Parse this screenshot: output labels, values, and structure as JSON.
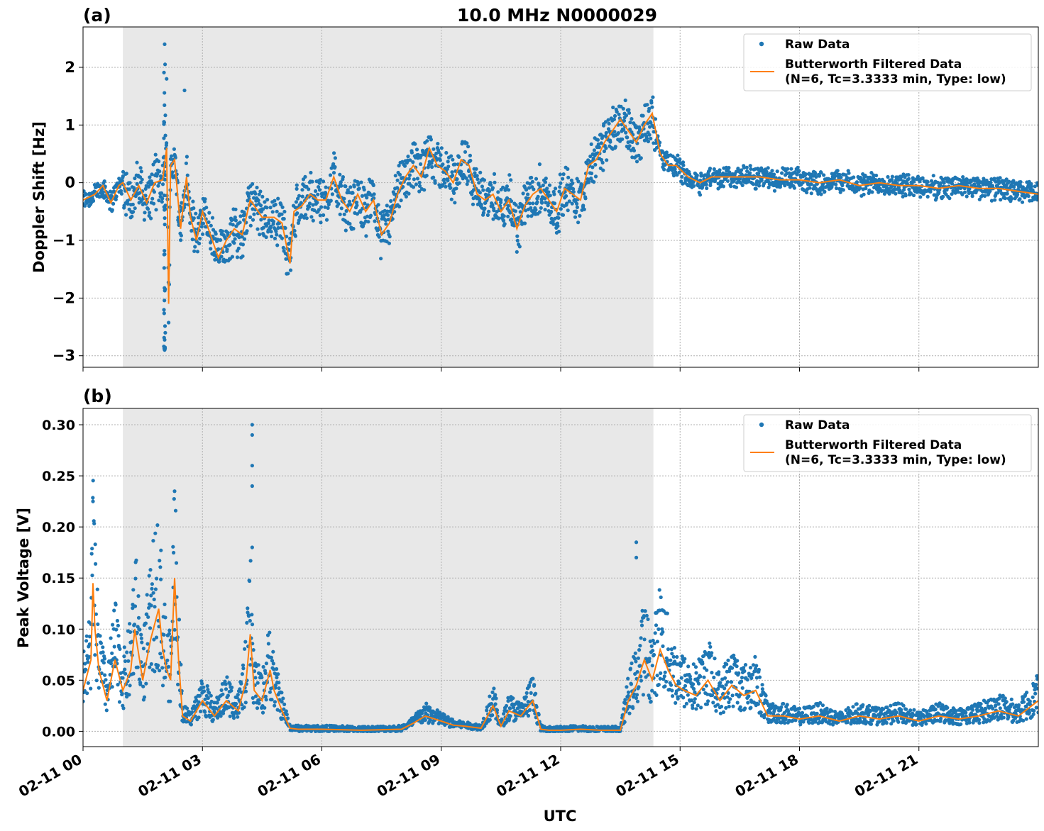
{
  "figure": {
    "title": "10.0 MHz N0000029",
    "xlabel": "UTC",
    "x_tick_labels": [
      "02-11 00",
      "02-11 03",
      "02-11 06",
      "02-11 09",
      "02-11 12",
      "02-11 15",
      "02-11 18",
      "02-11 21"
    ],
    "colors": {
      "raw": "#1f77b4",
      "filtered": "#ff7f0e",
      "night_shade": "#e8e8e8",
      "grid": "#b0b0b0"
    }
  },
  "chart_data": [
    {
      "type": "scatter",
      "panel_label": "(a)",
      "title": "10.0 MHz N0000029",
      "xlabel": "",
      "ylabel": "Doppler Shift [Hz]",
      "x_range_hours": [
        0,
        24
      ],
      "ylim": [
        -3.2,
        2.7
      ],
      "y_ticks": [
        2,
        1,
        0,
        -1,
        -2,
        -3
      ],
      "y_tick_labels": [
        "2",
        "1",
        "0",
        "−1",
        "−2",
        "−3"
      ],
      "shaded_interval_hours": [
        1.0,
        14.33
      ],
      "grid": true,
      "legend_placement": "top-right",
      "legend": [
        "Raw Data",
        "Butterworth Filtered Data",
        "(N=6, Tc=3.3333 min, Type: low)"
      ],
      "series": [
        {
          "name": "Butterworth Filtered Data",
          "x": [
            0,
            0.3,
            0.5,
            0.7,
            0.9,
            1.0,
            1.2,
            1.4,
            1.6,
            1.8,
            2.0,
            2.1,
            2.15,
            2.2,
            2.3,
            2.45,
            2.6,
            2.7,
            2.85,
            3.0,
            3.2,
            3.4,
            3.6,
            3.8,
            4.0,
            4.2,
            4.5,
            4.8,
            5.0,
            5.2,
            5.3,
            5.5,
            5.7,
            5.9,
            6.1,
            6.3,
            6.5,
            6.7,
            6.9,
            7.1,
            7.3,
            7.5,
            7.7,
            7.9,
            8.1,
            8.3,
            8.5,
            8.7,
            8.9,
            9.1,
            9.3,
            9.5,
            9.7,
            9.9,
            10.1,
            10.3,
            10.5,
            10.7,
            10.9,
            11.1,
            11.3,
            11.5,
            11.7,
            11.9,
            12.1,
            12.3,
            12.5,
            12.7,
            12.9,
            13.1,
            13.3,
            13.5,
            13.7,
            13.9,
            14.1,
            14.3,
            14.5,
            14.7,
            14.9,
            15.2,
            15.5,
            15.8,
            16.2,
            16.6,
            17.0,
            17.5,
            18.0,
            18.5,
            19.0,
            19.5,
            20.0,
            20.5,
            21.0,
            21.5,
            22.0,
            22.5,
            23.0,
            23.5,
            24.0
          ],
          "values": [
            -0.3,
            -0.2,
            -0.05,
            -0.35,
            -0.05,
            0.0,
            -0.3,
            -0.05,
            -0.35,
            0.0,
            0.05,
            0.6,
            -2.1,
            0.3,
            0.4,
            -0.8,
            0.1,
            -0.6,
            -1.0,
            -0.5,
            -0.9,
            -1.3,
            -1.0,
            -0.8,
            -0.9,
            -0.3,
            -0.6,
            -0.6,
            -0.7,
            -1.4,
            -0.5,
            -0.4,
            -0.2,
            -0.3,
            -0.3,
            0.1,
            -0.3,
            -0.5,
            -0.2,
            -0.5,
            -0.3,
            -0.9,
            -0.7,
            -0.2,
            0.1,
            0.3,
            0.1,
            0.6,
            0.3,
            0.2,
            0.0,
            0.4,
            0.3,
            -0.2,
            -0.3,
            -0.2,
            -0.5,
            -0.3,
            -0.8,
            -0.4,
            -0.2,
            -0.1,
            -0.3,
            -0.5,
            -0.1,
            -0.2,
            -0.3,
            0.3,
            0.4,
            0.7,
            0.9,
            1.1,
            0.9,
            0.7,
            1.0,
            1.2,
            0.5,
            0.3,
            0.3,
            0.1,
            0.0,
            0.1,
            0.1,
            0.1,
            0.1,
            0.05,
            0.05,
            0.0,
            0.05,
            -0.05,
            0.0,
            -0.05,
            -0.05,
            -0.1,
            -0.05,
            -0.1,
            -0.1,
            -0.15,
            -0.2
          ]
        },
        {
          "name": "Raw Data",
          "x": [],
          "values": []
        }
      ]
    },
    {
      "type": "scatter",
      "panel_label": "(b)",
      "title": "",
      "xlabel": "UTC",
      "ylabel": "Peak Voltage [V]",
      "x_range_hours": [
        0,
        24
      ],
      "ylim": [
        -0.015,
        0.316
      ],
      "y_ticks": [
        0.3,
        0.25,
        0.2,
        0.15,
        0.1,
        0.05,
        0.0
      ],
      "y_tick_labels": [
        "0.30",
        "0.25",
        "0.20",
        "0.15",
        "0.10",
        "0.05",
        "0.00"
      ],
      "shaded_interval_hours": [
        1.0,
        14.33
      ],
      "grid": true,
      "legend_placement": "top-right",
      "legend": [
        "Raw Data",
        "Butterworth Filtered Data",
        "(N=6, Tc=3.3333 min, Type: low)"
      ],
      "series": [
        {
          "name": "Butterworth Filtered Data",
          "x": [
            0,
            0.1,
            0.2,
            0.25,
            0.3,
            0.4,
            0.6,
            0.8,
            1.0,
            1.2,
            1.3,
            1.5,
            1.7,
            1.9,
            2.0,
            2.1,
            2.2,
            2.3,
            2.4,
            2.5,
            2.7,
            3.0,
            3.3,
            3.6,
            3.9,
            4.1,
            4.2,
            4.3,
            4.5,
            4.7,
            4.8,
            5.0,
            5.2,
            5.4,
            6.0,
            7.0,
            8.0,
            8.3,
            8.6,
            9.0,
            9.3,
            9.6,
            10.0,
            10.3,
            10.5,
            10.7,
            11.0,
            11.3,
            11.5,
            11.7,
            12.0,
            12.5,
            13.0,
            13.5,
            13.7,
            13.9,
            14.1,
            14.3,
            14.5,
            14.7,
            14.9,
            15.1,
            15.4,
            15.7,
            16.0,
            16.3,
            16.6,
            16.9,
            17.2,
            17.6,
            18.0,
            18.5,
            19.0,
            19.5,
            20.0,
            20.5,
            21.0,
            21.5,
            22.0,
            22.5,
            23.0,
            23.5,
            24.0
          ],
          "values": [
            0.04,
            0.055,
            0.07,
            0.145,
            0.1,
            0.06,
            0.03,
            0.07,
            0.04,
            0.06,
            0.1,
            0.05,
            0.09,
            0.12,
            0.08,
            0.06,
            0.05,
            0.15,
            0.07,
            0.015,
            0.01,
            0.03,
            0.015,
            0.03,
            0.02,
            0.05,
            0.095,
            0.04,
            0.03,
            0.06,
            0.04,
            0.02,
            0.003,
            0.002,
            0.002,
            0.001,
            0.002,
            0.008,
            0.015,
            0.01,
            0.006,
            0.005,
            0.003,
            0.025,
            0.005,
            0.02,
            0.015,
            0.03,
            0.002,
            0.001,
            0.001,
            0.002,
            0.001,
            0.001,
            0.03,
            0.045,
            0.07,
            0.05,
            0.08,
            0.06,
            0.045,
            0.04,
            0.035,
            0.05,
            0.03,
            0.045,
            0.035,
            0.04,
            0.015,
            0.015,
            0.012,
            0.015,
            0.01,
            0.015,
            0.012,
            0.015,
            0.01,
            0.015,
            0.012,
            0.015,
            0.02,
            0.015,
            0.03
          ]
        },
        {
          "name": "Raw Data",
          "x": [],
          "values": []
        }
      ]
    }
  ]
}
